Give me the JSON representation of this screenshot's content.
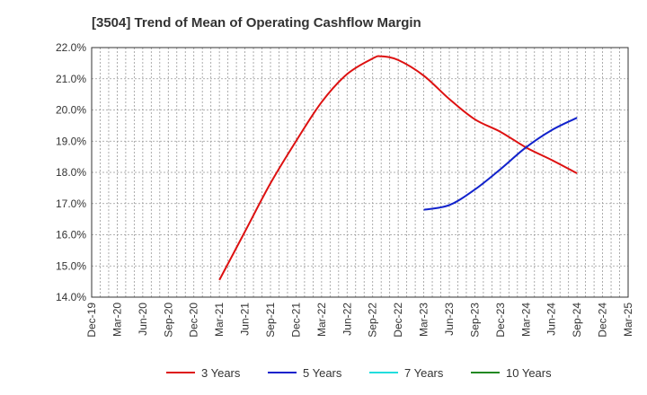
{
  "chart_data": {
    "type": "line",
    "title": "[3504]  Trend of Mean of Operating Cashflow Margin",
    "xlabel": "",
    "ylabel": "",
    "x_ticks": [
      "Dec-19",
      "Mar-20",
      "Jun-20",
      "Sep-20",
      "Dec-20",
      "Mar-21",
      "Jun-21",
      "Sep-21",
      "Dec-21",
      "Mar-22",
      "Jun-22",
      "Sep-22",
      "Dec-22",
      "Mar-23",
      "Jun-23",
      "Sep-23",
      "Dec-23",
      "Mar-24",
      "Jun-24",
      "Sep-24",
      "Dec-24",
      "Mar-25"
    ],
    "y_ticks": [
      "14.0%",
      "15.0%",
      "16.0%",
      "17.0%",
      "18.0%",
      "19.0%",
      "20.0%",
      "21.0%",
      "22.0%"
    ],
    "ylim": [
      14.0,
      22.0
    ],
    "grid": true,
    "legend_position": "bottom",
    "series": [
      {
        "name": "3 Years",
        "color": "#dd1111",
        "x": [
          "Mar-21",
          "Jun-21",
          "Sep-21",
          "Dec-21",
          "Mar-22",
          "Jun-22",
          "Sep-22",
          "Oct-22",
          "Dec-22",
          "Mar-23",
          "Jun-23",
          "Sep-23",
          "Dec-23",
          "Mar-24",
          "Jun-24",
          "Sep-24"
        ],
        "values": [
          14.55,
          16.1,
          17.65,
          19.0,
          20.25,
          21.15,
          21.65,
          21.72,
          21.6,
          21.1,
          20.35,
          19.7,
          19.3,
          18.8,
          18.4,
          17.97
        ]
      },
      {
        "name": "5 Years",
        "color": "#1122cc",
        "x": [
          "Mar-23",
          "Jun-23",
          "Sep-23",
          "Dec-23",
          "Mar-24",
          "Jun-24",
          "Sep-24"
        ],
        "values": [
          16.8,
          16.95,
          17.45,
          18.1,
          18.8,
          19.35,
          19.75
        ]
      },
      {
        "name": "7 Years",
        "color": "#22dddd",
        "x": [],
        "values": []
      },
      {
        "name": "10 Years",
        "color": "#228822",
        "x": [],
        "values": []
      }
    ]
  }
}
